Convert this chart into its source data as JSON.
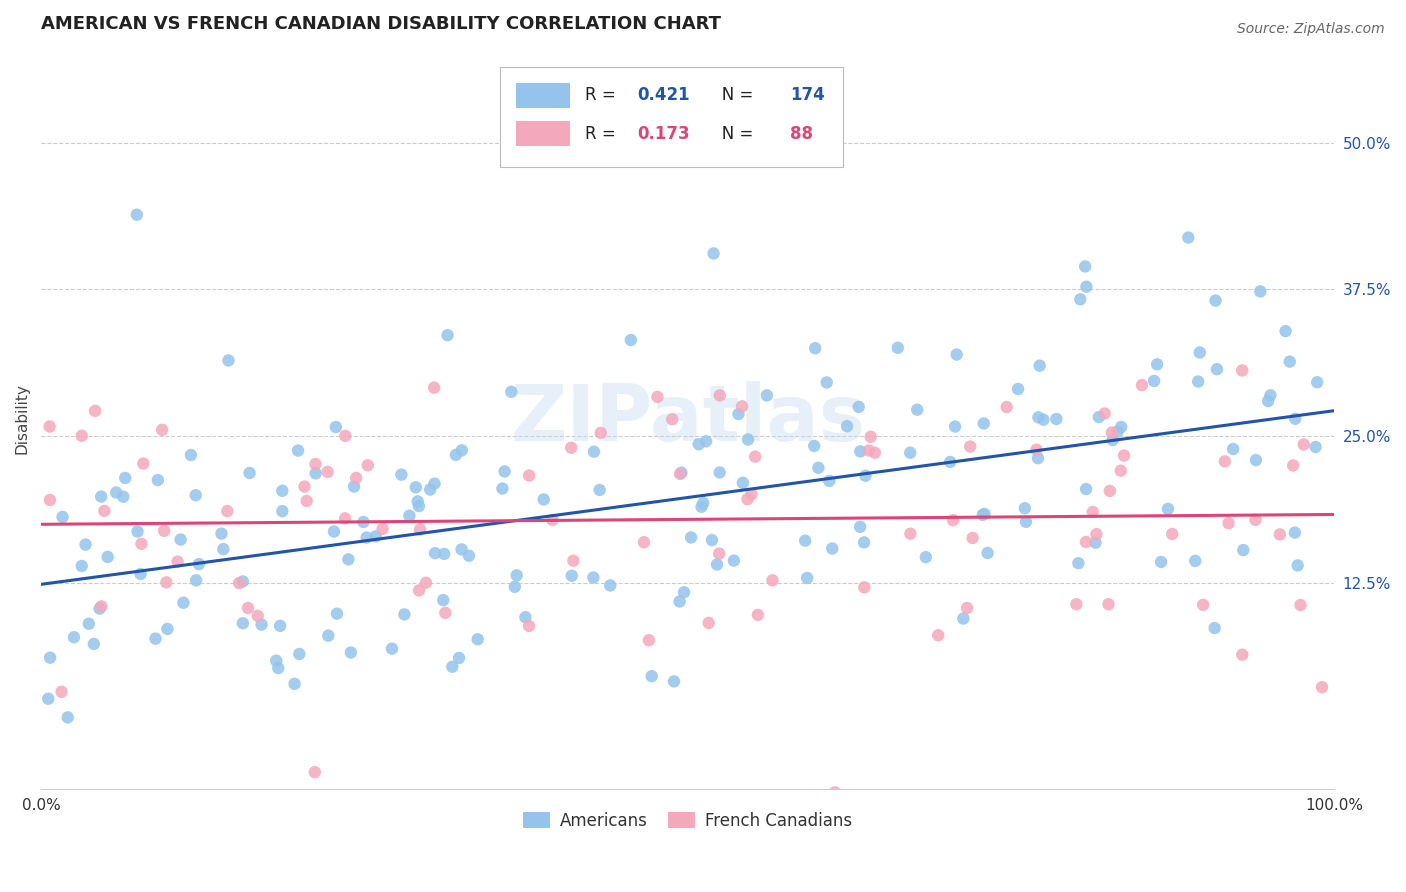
{
  "title": "AMERICAN VS FRENCH CANADIAN DISABILITY CORRELATION CHART",
  "source": "Source: ZipAtlas.com",
  "ylabel": "Disability",
  "xlim": [
    0.0,
    1.0
  ],
  "ylim": [
    -0.05,
    0.58
  ],
  "xticks": [
    0.0,
    0.25,
    0.5,
    0.75,
    1.0
  ],
  "xtick_labels": [
    "0.0%",
    "",
    "",
    "",
    "100.0%"
  ],
  "yticks": [
    0.125,
    0.25,
    0.375,
    0.5
  ],
  "ytick_labels": [
    "12.5%",
    "25.0%",
    "37.5%",
    "50.0%"
  ],
  "american_color": "#94c4ec",
  "french_color": "#f4a8bc",
  "american_line_color": "#2255aa",
  "french_line_color": "#dd4477",
  "R_american": 0.421,
  "N_american": 174,
  "R_french": 0.173,
  "N_french": 88,
  "watermark": "ZIPatlas",
  "title_fontsize": 13,
  "source_fontsize": 10,
  "tick_fontsize": 11,
  "ylabel_fontsize": 11,
  "legend_fontsize": 12,
  "scatter_size": 80,
  "line_width": 2.2,
  "background_color": "#ffffff",
  "grid_color": "#cccccc",
  "grid_style": "--",
  "grid_lw": 0.8
}
